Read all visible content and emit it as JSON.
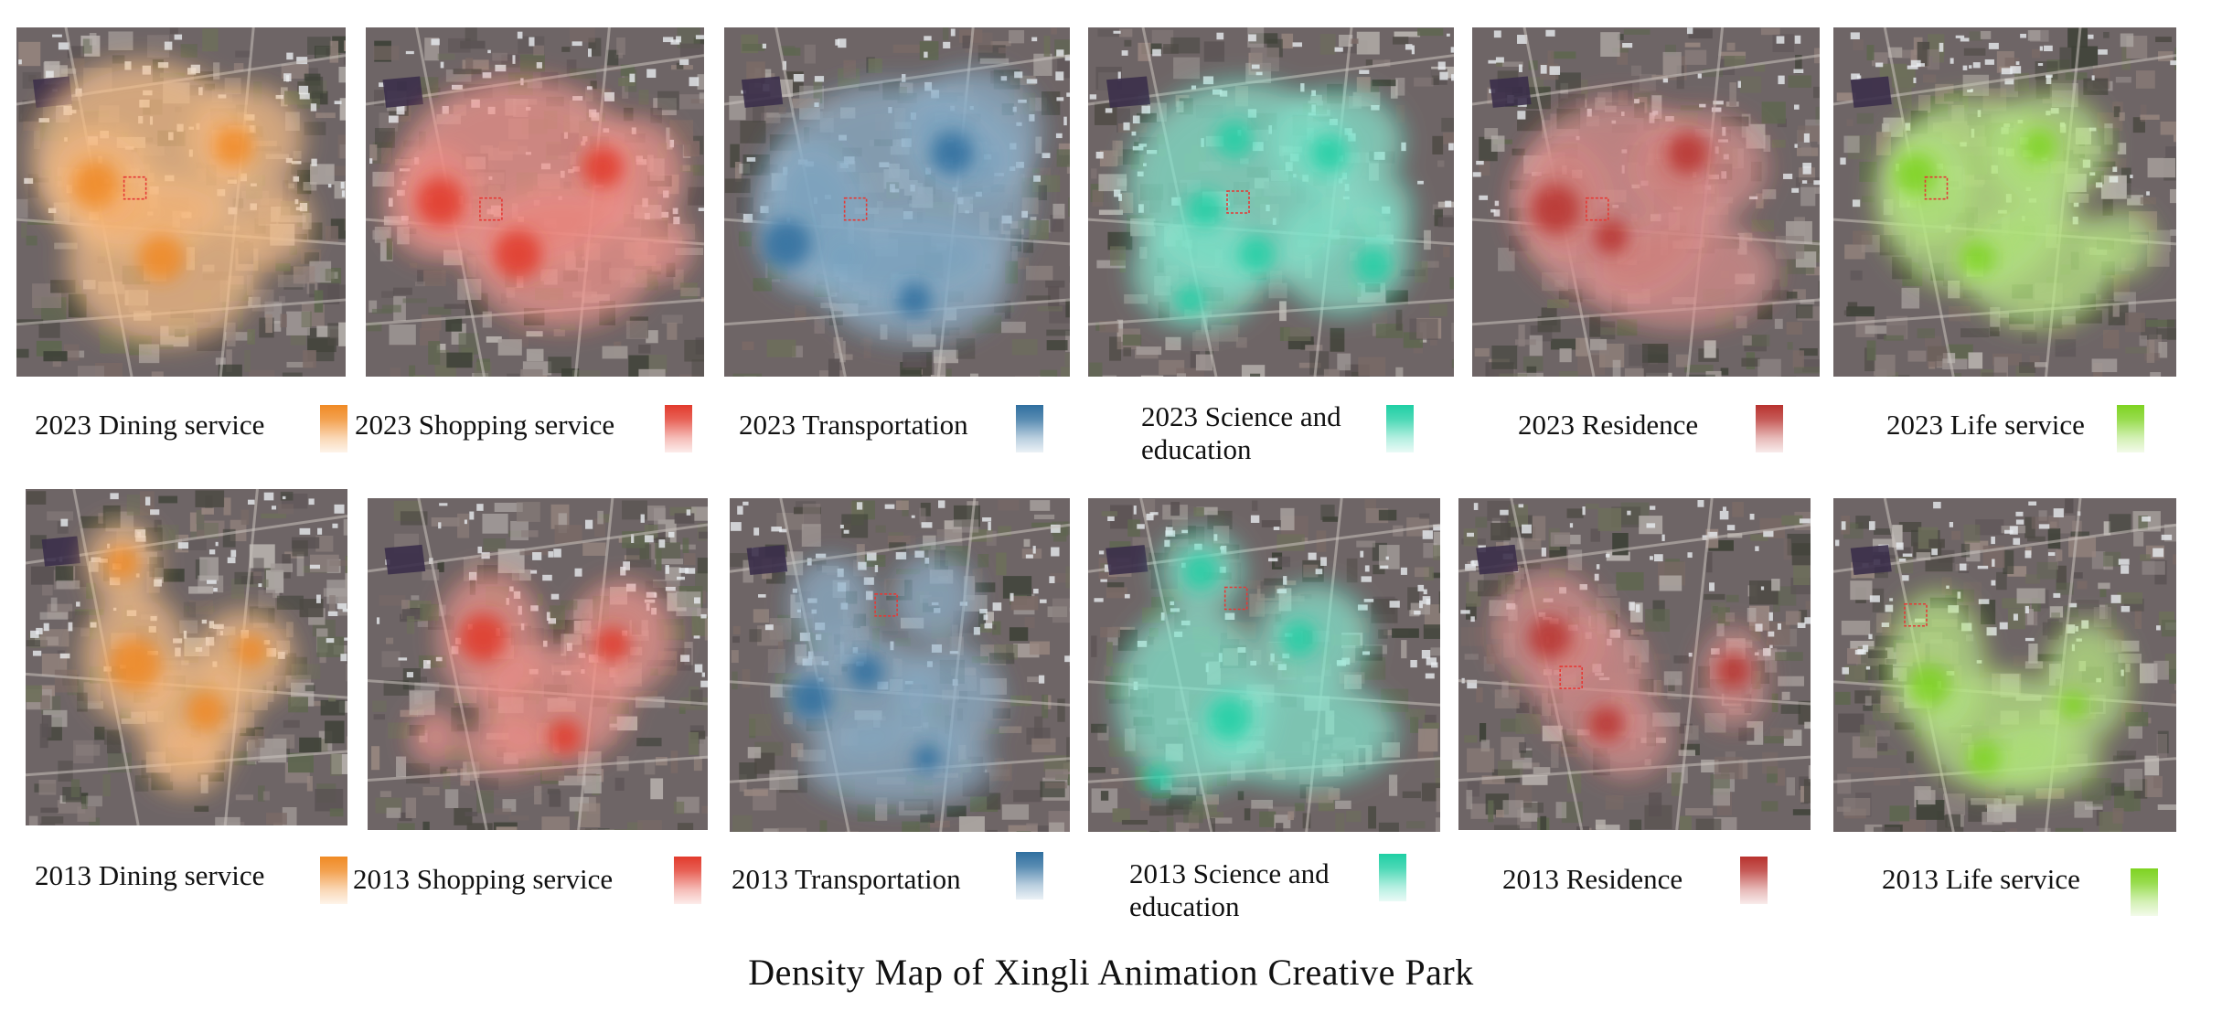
{
  "title": "Density Map of  Xingli Animation Creative Park",
  "colors": {
    "dining": "#f08a24",
    "shopping": "#e23a2c",
    "transportation": "#2f6f9f",
    "science_education": "#1fcfa4",
    "residence": "#b8322e",
    "life_service": "#7ed321"
  },
  "rows": [
    {
      "year": "2023",
      "panels": [
        {
          "caption": "2023 Dining service",
          "category": "dining",
          "icon": "dining-density-map"
        },
        {
          "caption": "2023 Shopping service",
          "category": "shopping",
          "icon": "shopping-density-map"
        },
        {
          "caption": "2023 Transportation",
          "category": "transportation",
          "icon": "transportation-density-map"
        },
        {
          "caption": "2023 Science and education",
          "category": "science_education",
          "icon": "science-education-density-map"
        },
        {
          "caption": "2023 Residence",
          "category": "residence",
          "icon": "residence-density-map"
        },
        {
          "caption": "2023 Life  service",
          "category": "life_service",
          "icon": "life-service-density-map"
        }
      ]
    },
    {
      "year": "2013",
      "panels": [
        {
          "caption": "2013 Dining service",
          "category": "dining",
          "icon": "dining-density-map"
        },
        {
          "caption": "2013 Shopping service",
          "category": "shopping",
          "icon": "shopping-density-map"
        },
        {
          "caption": "2013 Transportation",
          "category": "transportation",
          "icon": "transportation-density-map"
        },
        {
          "caption": "2013 Science and education",
          "category": "science_education",
          "icon": "science-education-density-map"
        },
        {
          "caption": "2013 Residence",
          "category": "residence",
          "icon": "residence-density-map"
        },
        {
          "caption": "2013 Life  service",
          "category": "life_service",
          "icon": "life-service-density-map"
        }
      ]
    }
  ]
}
